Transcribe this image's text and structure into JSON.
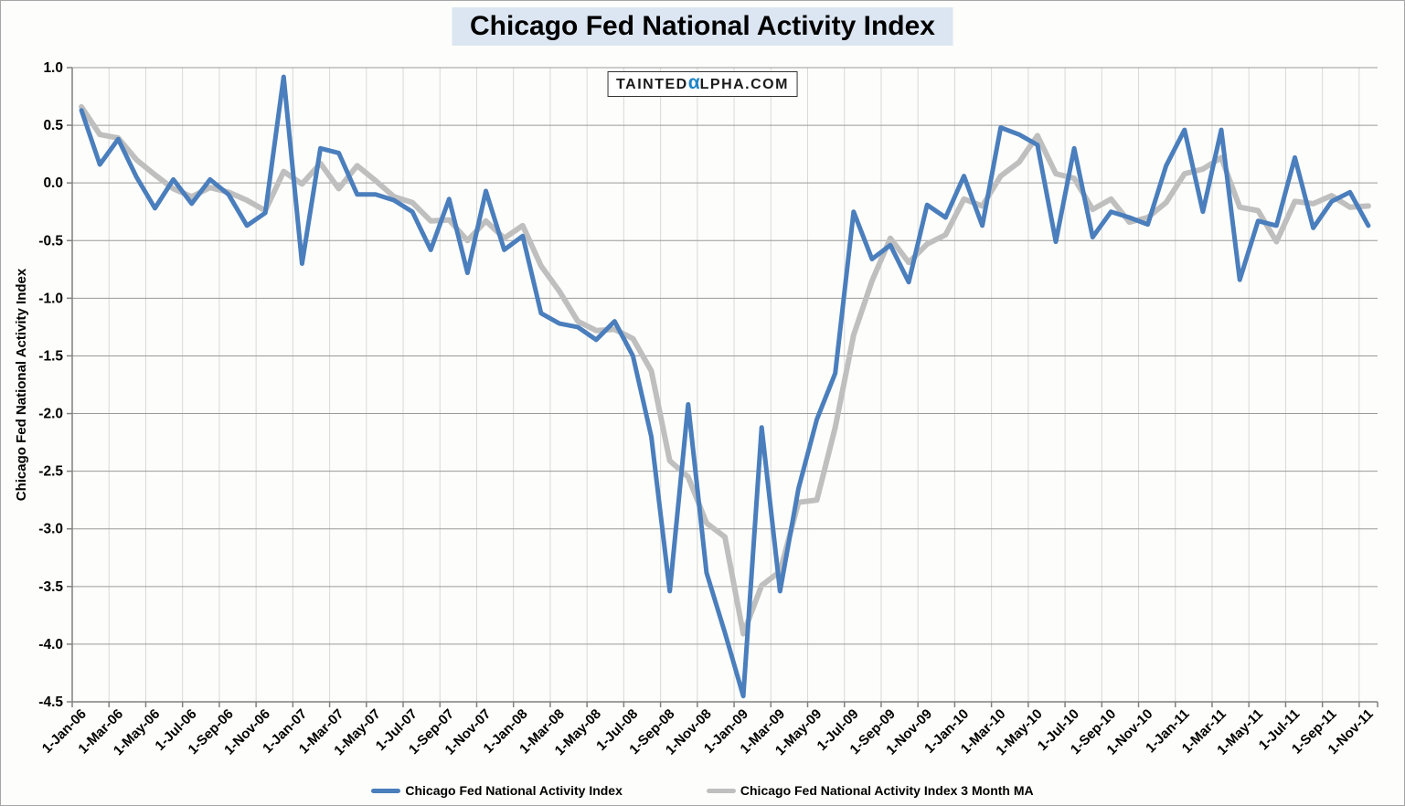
{
  "title": "Chicago Fed National Activity Index",
  "watermark": {
    "text_before": "TAINTED",
    "alpha_glyph": "α",
    "text_after": "LPHA.COM",
    "alpha_color": "#1e86c7"
  },
  "y_axis": {
    "title": "Chicago Fed National Activity Index",
    "tick_labels": [
      "1.0",
      "0.5",
      "0.0",
      "-0.5",
      "-1.0",
      "-1.5",
      "-2.0",
      "-2.5",
      "-3.0",
      "-3.5",
      "-4.0",
      "-4.5"
    ],
    "max": 1.0,
    "min": -4.5,
    "step": 0.5
  },
  "legend": {
    "items": [
      {
        "label": "Chicago Fed National Activity Index",
        "color": "#4a7ebc"
      },
      {
        "label": "Chicago Fed National Activity Index 3 Month MA",
        "color": "#bfbfbf"
      }
    ]
  },
  "colors": {
    "title_background": "#dce6f2",
    "axis_line": "#808080",
    "h_gridline": "#9a9a9a",
    "v_gridline": "#d9d9d9",
    "series_index": "#4a7ebc",
    "series_ma": "#bfbfbf"
  },
  "chart_data": {
    "type": "line",
    "title": "Chicago Fed National Activity Index",
    "ylabel": "Chicago Fed National Activity Index",
    "ylim": [
      -4.5,
      1.0
    ],
    "y_tick_step": 0.5,
    "grid": true,
    "legend_position": "bottom",
    "x_tick_every": 2,
    "categories": [
      "1-Jan-06",
      "1-Feb-06",
      "1-Mar-06",
      "1-Apr-06",
      "1-May-06",
      "1-Jun-06",
      "1-Jul-06",
      "1-Aug-06",
      "1-Sep-06",
      "1-Oct-06",
      "1-Nov-06",
      "1-Dec-06",
      "1-Jan-07",
      "1-Feb-07",
      "1-Mar-07",
      "1-Apr-07",
      "1-May-07",
      "1-Jun-07",
      "1-Jul-07",
      "1-Aug-07",
      "1-Sep-07",
      "1-Oct-07",
      "1-Nov-07",
      "1-Dec-07",
      "1-Jan-08",
      "1-Feb-08",
      "1-Mar-08",
      "1-Apr-08",
      "1-May-08",
      "1-Jun-08",
      "1-Jul-08",
      "1-Aug-08",
      "1-Sep-08",
      "1-Oct-08",
      "1-Nov-08",
      "1-Dec-08",
      "1-Jan-09",
      "1-Feb-09",
      "1-Mar-09",
      "1-Apr-09",
      "1-May-09",
      "1-Jun-09",
      "1-Jul-09",
      "1-Aug-09",
      "1-Sep-09",
      "1-Oct-09",
      "1-Nov-09",
      "1-Dec-09",
      "1-Jan-10",
      "1-Feb-10",
      "1-Mar-10",
      "1-Apr-10",
      "1-May-10",
      "1-Jun-10",
      "1-Jul-10",
      "1-Aug-10",
      "1-Sep-10",
      "1-Oct-10",
      "1-Nov-10",
      "1-Dec-10",
      "1-Jan-11",
      "1-Feb-11",
      "1-Mar-11",
      "1-Apr-11",
      "1-May-11",
      "1-Jun-11",
      "1-Jul-11",
      "1-Aug-11",
      "1-Sep-11",
      "1-Oct-11",
      "1-Nov-11"
    ],
    "series": [
      {
        "name": "Chicago Fed National Activity Index",
        "color": "#4a7ebc",
        "stroke_width": 5,
        "values": [
          0.63,
          0.16,
          0.38,
          0.05,
          -0.22,
          0.03,
          -0.18,
          0.03,
          -0.1,
          -0.37,
          -0.26,
          0.92,
          -0.7,
          0.3,
          0.26,
          -0.1,
          -0.1,
          -0.15,
          -0.25,
          -0.58,
          -0.14,
          -0.78,
          -0.07,
          -0.58,
          -0.46,
          -1.13,
          -1.22,
          -1.25,
          -1.36,
          -1.2,
          -1.5,
          -2.2,
          -3.54,
          -1.92,
          -3.38,
          -3.9,
          -4.45,
          -2.12,
          -3.54,
          -2.65,
          -2.05,
          -1.65,
          -0.25,
          -0.66,
          -0.54,
          -0.86,
          -0.19,
          -0.3,
          0.06,
          -0.37,
          0.48,
          0.42,
          0.33,
          -0.51,
          0.3,
          -0.47,
          -0.25,
          -0.3,
          -0.36,
          0.15,
          0.46,
          -0.25,
          0.46,
          -0.84,
          -0.33,
          -0.37,
          0.22,
          -0.39,
          -0.16,
          -0.08,
          -0.37
        ]
      },
      {
        "name": "Chicago Fed National Activity Index 3 Month MA",
        "color": "#bfbfbf",
        "stroke_width": 6,
        "values": [
          0.66,
          0.42,
          0.39,
          0.2,
          0.07,
          -0.05,
          -0.12,
          -0.04,
          -0.08,
          -0.15,
          -0.24,
          0.1,
          -0.01,
          0.17,
          -0.05,
          0.15,
          0.02,
          -0.12,
          -0.17,
          -0.33,
          -0.32,
          -0.5,
          -0.33,
          -0.48,
          -0.37,
          -0.72,
          -0.94,
          -1.2,
          -1.28,
          -1.27,
          -1.35,
          -1.63,
          -2.41,
          -2.55,
          -2.95,
          -3.07,
          -3.91,
          -3.49,
          -3.37,
          -2.77,
          -2.75,
          -2.12,
          -1.32,
          -0.85,
          -0.48,
          -0.69,
          -0.53,
          -0.45,
          -0.14,
          -0.2,
          0.06,
          0.18,
          0.41,
          0.08,
          0.04,
          -0.23,
          -0.14,
          -0.34,
          -0.3,
          -0.17,
          0.08,
          0.12,
          0.22,
          -0.21,
          -0.24,
          -0.51,
          -0.16,
          -0.18,
          -0.11,
          -0.21,
          -0.2
        ]
      }
    ]
  }
}
